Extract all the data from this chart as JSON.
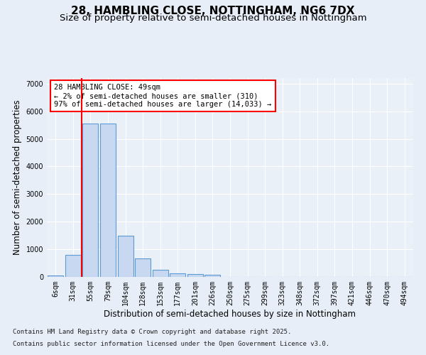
{
  "title_line1": "28, HAMBLING CLOSE, NOTTINGHAM, NG6 7DX",
  "title_line2": "Size of property relative to semi-detached houses in Nottingham",
  "xlabel": "Distribution of semi-detached houses by size in Nottingham",
  "ylabel": "Number of semi-detached properties",
  "categories": [
    "6sqm",
    "31sqm",
    "55sqm",
    "79sqm",
    "104sqm",
    "128sqm",
    "153sqm",
    "177sqm",
    "201sqm",
    "226sqm",
    "250sqm",
    "275sqm",
    "299sqm",
    "323sqm",
    "348sqm",
    "372sqm",
    "397sqm",
    "421sqm",
    "446sqm",
    "470sqm",
    "494sqm"
  ],
  "values": [
    50,
    800,
    5550,
    5550,
    1480,
    660,
    270,
    140,
    95,
    75,
    0,
    0,
    0,
    0,
    0,
    0,
    0,
    0,
    0,
    0,
    0
  ],
  "bar_color": "#c8d8f0",
  "bar_edge_color": "#5b9bd5",
  "red_line_x": 1.5,
  "annotation_text": "28 HAMBLING CLOSE: 49sqm\n← 2% of semi-detached houses are smaller (310)\n97% of semi-detached houses are larger (14,033) →",
  "ylim": [
    0,
    7200
  ],
  "yticks": [
    0,
    1000,
    2000,
    3000,
    4000,
    5000,
    6000,
    7000
  ],
  "bg_color": "#e8eef8",
  "plot_bg_color": "#eaf0f8",
  "grid_color": "#ffffff",
  "footer_line1": "Contains HM Land Registry data © Crown copyright and database right 2025.",
  "footer_line2": "Contains public sector information licensed under the Open Government Licence v3.0.",
  "title_fontsize": 11,
  "subtitle_fontsize": 9.5,
  "axis_label_fontsize": 8.5,
  "tick_fontsize": 7,
  "annotation_fontsize": 7.5,
  "footer_fontsize": 6.5
}
